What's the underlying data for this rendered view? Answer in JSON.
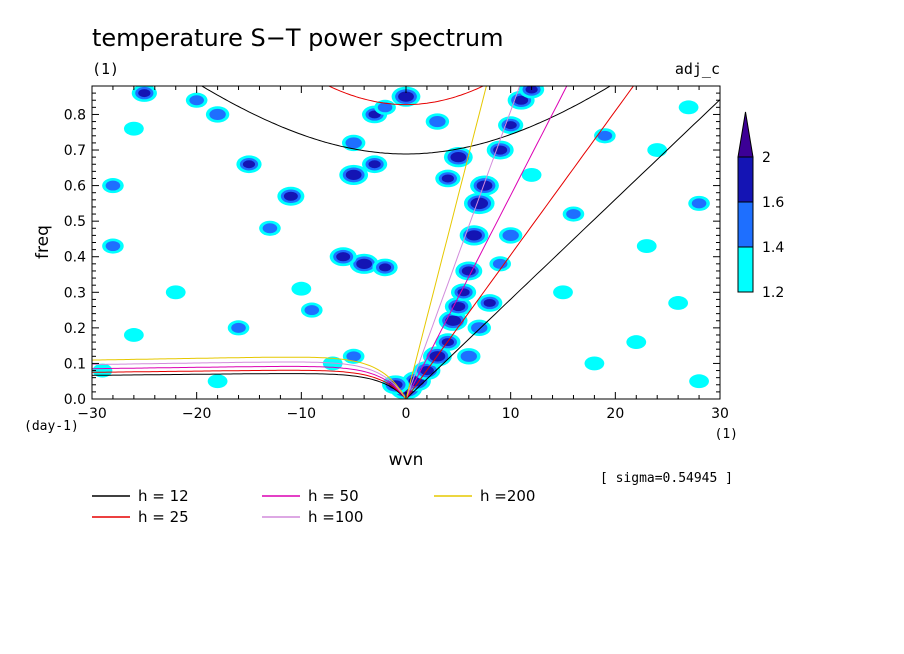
{
  "chart_data": {
    "type": "heatmap",
    "title": "temperature S−T power spectrum",
    "subtitle_left": "(1)",
    "subtitle_right": "adj_c",
    "xlabel": "wvn",
    "ylabel": "freq",
    "x_unit": "(1)",
    "y_unit": "(day-1)",
    "xlim": [
      -30,
      30
    ],
    "ylim": [
      0,
      0.88
    ],
    "x_ticks": [
      -30,
      -20,
      -10,
      0,
      10,
      20,
      30
    ],
    "x_tick_labels": [
      "−30",
      "−20",
      "−10",
      "0",
      "10",
      "20",
      "30"
    ],
    "y_ticks": [
      0.0,
      0.1,
      0.2,
      0.3,
      0.4,
      0.5,
      0.6,
      0.7,
      0.8
    ],
    "y_tick_labels": [
      "0.0",
      "0.1",
      "0.2",
      "0.3",
      "0.4",
      "0.5",
      "0.6",
      "0.7",
      "0.8"
    ],
    "sigma_text": "[ sigma=0.54945 ]",
    "colorbar": {
      "levels": [
        1.2,
        1.4,
        1.6,
        2
      ],
      "level_labels": [
        "1.2",
        "1.4",
        "1.6",
        "2"
      ],
      "colors": [
        "#00ffff",
        "#1e6fff",
        "#1414b4",
        "#3c0096"
      ]
    },
    "dispersion_curves": [
      {
        "label": "h = 12",
        "h": 12,
        "color": "#000000"
      },
      {
        "label": "h = 25",
        "h": 25,
        "color": "#e60000"
      },
      {
        "label": "h = 50",
        "h": 50,
        "color": "#dc00b4"
      },
      {
        "label": "h =100",
        "h": 100,
        "color": "#d28cdc"
      },
      {
        "label": "h =200",
        "h": 200,
        "color": "#e6c800"
      }
    ],
    "blobs": [
      {
        "x": 0,
        "y": 0.03,
        "v": 2.0
      },
      {
        "x": 1,
        "y": 0.05,
        "v": 1.8
      },
      {
        "x": -1,
        "y": 0.04,
        "v": 1.7
      },
      {
        "x": 2,
        "y": 0.08,
        "v": 1.7
      },
      {
        "x": 3,
        "y": 0.12,
        "v": 1.8
      },
      {
        "x": 4,
        "y": 0.16,
        "v": 1.6
      },
      {
        "x": 4.5,
        "y": 0.22,
        "v": 1.8
      },
      {
        "x": 5,
        "y": 0.26,
        "v": 1.7
      },
      {
        "x": 5.5,
        "y": 0.3,
        "v": 1.6
      },
      {
        "x": 6,
        "y": 0.36,
        "v": 1.7
      },
      {
        "x": 6.5,
        "y": 0.46,
        "v": 1.8
      },
      {
        "x": 7,
        "y": 0.55,
        "v": 1.9
      },
      {
        "x": 7.5,
        "y": 0.6,
        "v": 1.8
      },
      {
        "x": 9,
        "y": 0.7,
        "v": 1.7
      },
      {
        "x": 10,
        "y": 0.77,
        "v": 1.6
      },
      {
        "x": 11,
        "y": 0.84,
        "v": 1.7
      },
      {
        "x": 12,
        "y": 0.87,
        "v": 1.6
      },
      {
        "x": 7,
        "y": 0.2,
        "v": 1.5
      },
      {
        "x": 8,
        "y": 0.27,
        "v": 1.6
      },
      {
        "x": 9,
        "y": 0.38,
        "v": 1.4
      },
      {
        "x": 6,
        "y": 0.12,
        "v": 1.5
      },
      {
        "x": 10,
        "y": 0.46,
        "v": 1.5
      },
      {
        "x": -4,
        "y": 0.38,
        "v": 1.8
      },
      {
        "x": -6,
        "y": 0.4,
        "v": 1.7
      },
      {
        "x": -2,
        "y": 0.37,
        "v": 1.6
      },
      {
        "x": -5,
        "y": 0.63,
        "v": 1.8
      },
      {
        "x": -3,
        "y": 0.66,
        "v": 1.6
      },
      {
        "x": -5,
        "y": 0.72,
        "v": 1.5
      },
      {
        "x": -3,
        "y": 0.8,
        "v": 1.6
      },
      {
        "x": 0,
        "y": 0.85,
        "v": 1.8
      },
      {
        "x": -2,
        "y": 0.82,
        "v": 1.4
      },
      {
        "x": 5,
        "y": 0.68,
        "v": 1.8
      },
      {
        "x": 4,
        "y": 0.62,
        "v": 1.6
      },
      {
        "x": 3,
        "y": 0.78,
        "v": 1.5
      },
      {
        "x": -11,
        "y": 0.57,
        "v": 1.7
      },
      {
        "x": -15,
        "y": 0.66,
        "v": 1.6
      },
      {
        "x": -13,
        "y": 0.48,
        "v": 1.4
      },
      {
        "x": -18,
        "y": 0.8,
        "v": 1.5
      },
      {
        "x": -20,
        "y": 0.84,
        "v": 1.4
      },
      {
        "x": -25,
        "y": 0.86,
        "v": 1.6
      },
      {
        "x": -28,
        "y": 0.6,
        "v": 1.4
      },
      {
        "x": -28,
        "y": 0.43,
        "v": 1.4
      },
      {
        "x": -16,
        "y": 0.2,
        "v": 1.4
      },
      {
        "x": -26,
        "y": 0.18,
        "v": 1.3
      },
      {
        "x": -22,
        "y": 0.3,
        "v": 1.3
      },
      {
        "x": -9,
        "y": 0.25,
        "v": 1.4
      },
      {
        "x": -10,
        "y": 0.31,
        "v": 1.3
      },
      {
        "x": -5,
        "y": 0.12,
        "v": 1.4
      },
      {
        "x": -7,
        "y": 0.1,
        "v": 1.3
      },
      {
        "x": 19,
        "y": 0.74,
        "v": 1.4
      },
      {
        "x": 24,
        "y": 0.7,
        "v": 1.3
      },
      {
        "x": 28,
        "y": 0.55,
        "v": 1.4
      },
      {
        "x": 23,
        "y": 0.43,
        "v": 1.3
      },
      {
        "x": 26,
        "y": 0.27,
        "v": 1.3
      },
      {
        "x": 22,
        "y": 0.16,
        "v": 1.3
      },
      {
        "x": 15,
        "y": 0.3,
        "v": 1.3
      },
      {
        "x": 16,
        "y": 0.52,
        "v": 1.4
      },
      {
        "x": 18,
        "y": 0.1,
        "v": 1.3
      },
      {
        "x": 28,
        "y": 0.05,
        "v": 1.3
      },
      {
        "x": -29,
        "y": 0.08,
        "v": 1.3
      },
      {
        "x": -18,
        "y": 0.05,
        "v": 1.3
      },
      {
        "x": -26,
        "y": 0.76,
        "v": 1.3
      },
      {
        "x": 27,
        "y": 0.82,
        "v": 1.3
      },
      {
        "x": 12,
        "y": 0.63,
        "v": 1.3
      }
    ]
  }
}
